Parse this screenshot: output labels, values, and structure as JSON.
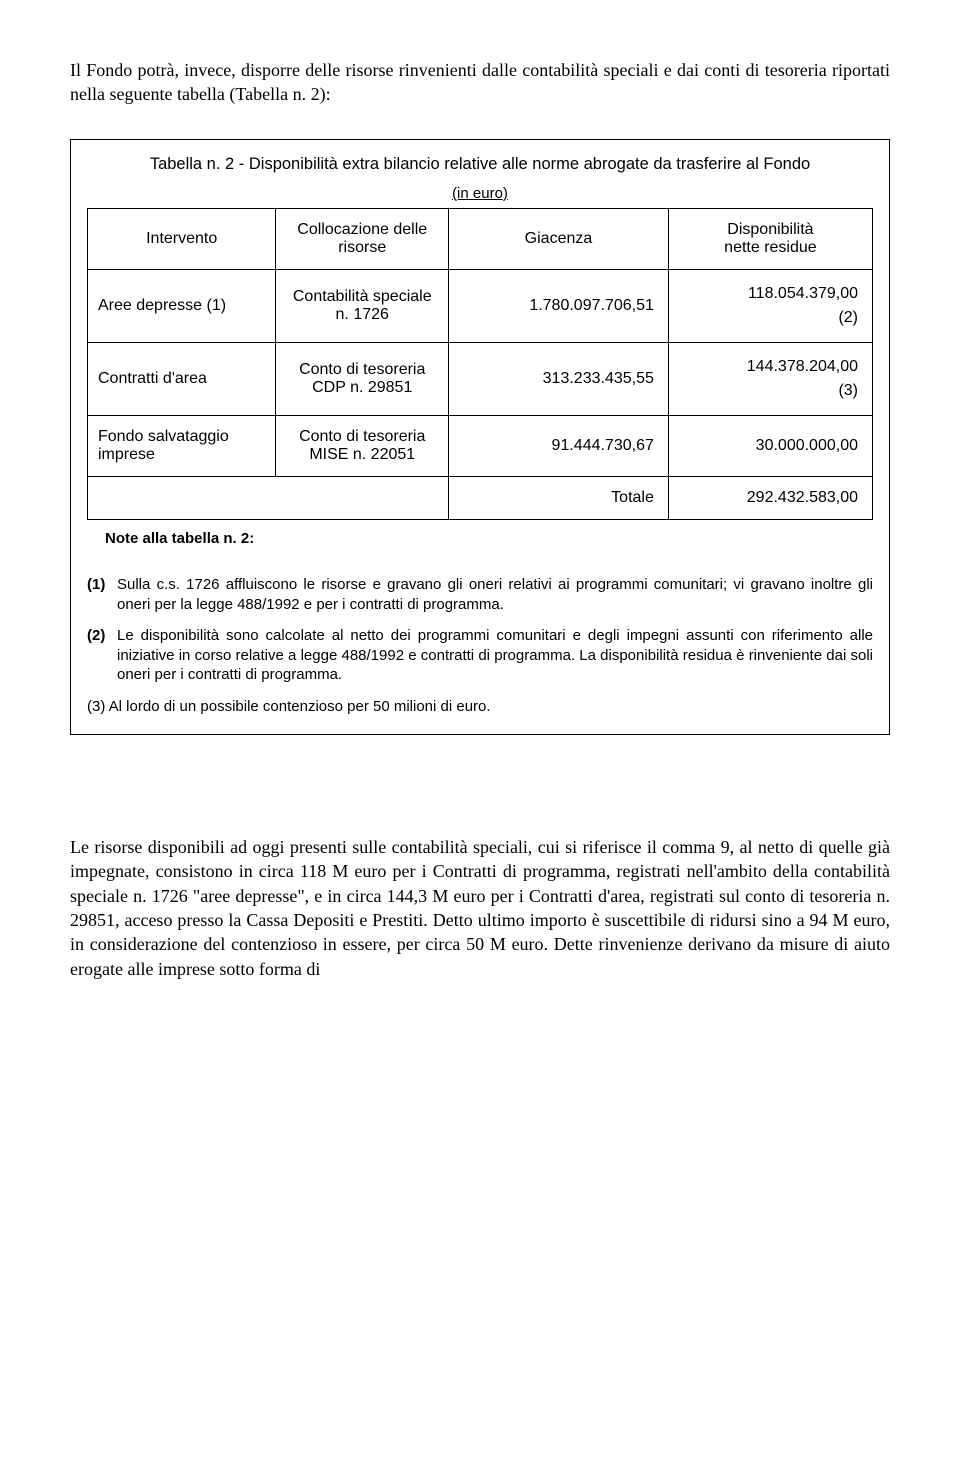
{
  "intro": "Il Fondo potrà, invece, disporre delle risorse rinvenienti dalle contabilità speciali e dai conti di tesoreria riportati nella seguente tabella (Tabella n. 2):",
  "table": {
    "title": "Tabella n. 2 - Disponibilità extra bilancio relative alle norme abrogate da trasferire al Fondo",
    "in_euro": "(in euro)",
    "headers": {
      "intervento": "Intervento",
      "collocazione": "Collocazione delle risorse",
      "giacenza": "Giacenza",
      "disponibilita_l1": "Disponibilità",
      "disponibilita_l2": "nette residue"
    },
    "rows": [
      {
        "intervento": "Aree depresse (1)",
        "collocazione": "Contabilità speciale n. 1726",
        "giacenza": "1.780.097.706,51",
        "disp": "118.054.379,00",
        "disp_note": "(2)"
      },
      {
        "intervento": "Contratti d'area",
        "collocazione": "Conto di tesoreria CDP n. 29851",
        "giacenza": "313.233.435,55",
        "disp": "144.378.204,00",
        "disp_note": "(3)"
      },
      {
        "intervento": "Fondo  salvataggio imprese",
        "collocazione": "Conto di tesoreria MISE n. 22051",
        "giacenza": "91.444.730,67",
        "disp": "30.000.000,00",
        "disp_note": ""
      }
    ],
    "total_label": "Totale",
    "total_value": "292.432.583,00",
    "note_label": "Note alla tabella n. 2:"
  },
  "footnotes": {
    "f1_num": "(1)",
    "f1": "Sulla c.s. 1726 affluiscono le risorse e gravano gli oneri relativi ai programmi comunitari; vi gravano inoltre gli oneri per la legge 488/1992 e per i contratti di programma.",
    "f2_num": "(2)",
    "f2": "Le disponibilità sono calcolate al netto dei programmi comunitari e degli impegni assunti con riferimento alle iniziative in corso relative a legge 488/1992 e contratti di programma. La disponibilità residua è rinveniente dai soli oneri per i contratti di programma.",
    "f3": "(3) Al lordo di un possibile contenzioso per 50 milioni di euro."
  },
  "closing": "Le risorse disponibili ad oggi presenti sulle contabilità speciali, cui si riferisce il comma 9, al netto di quelle già impegnate, consistono in circa 118 M euro per i Contratti di programma, registrati nell'ambito della contabilità speciale n. 1726 \"aree depresse\", e in circa 144,3 M euro per i Contratti d'area, registrati sul conto di tesoreria n. 29851, acceso presso la Cassa Depositi e Prestiti. Detto ultimo importo è suscettibile di ridursi sino a 94 M euro, in considerazione del contenzioso in essere, per circa 50 M euro. Dette rinvenienze derivano da misure di aiuto erogate alle imprese sotto forma di"
}
